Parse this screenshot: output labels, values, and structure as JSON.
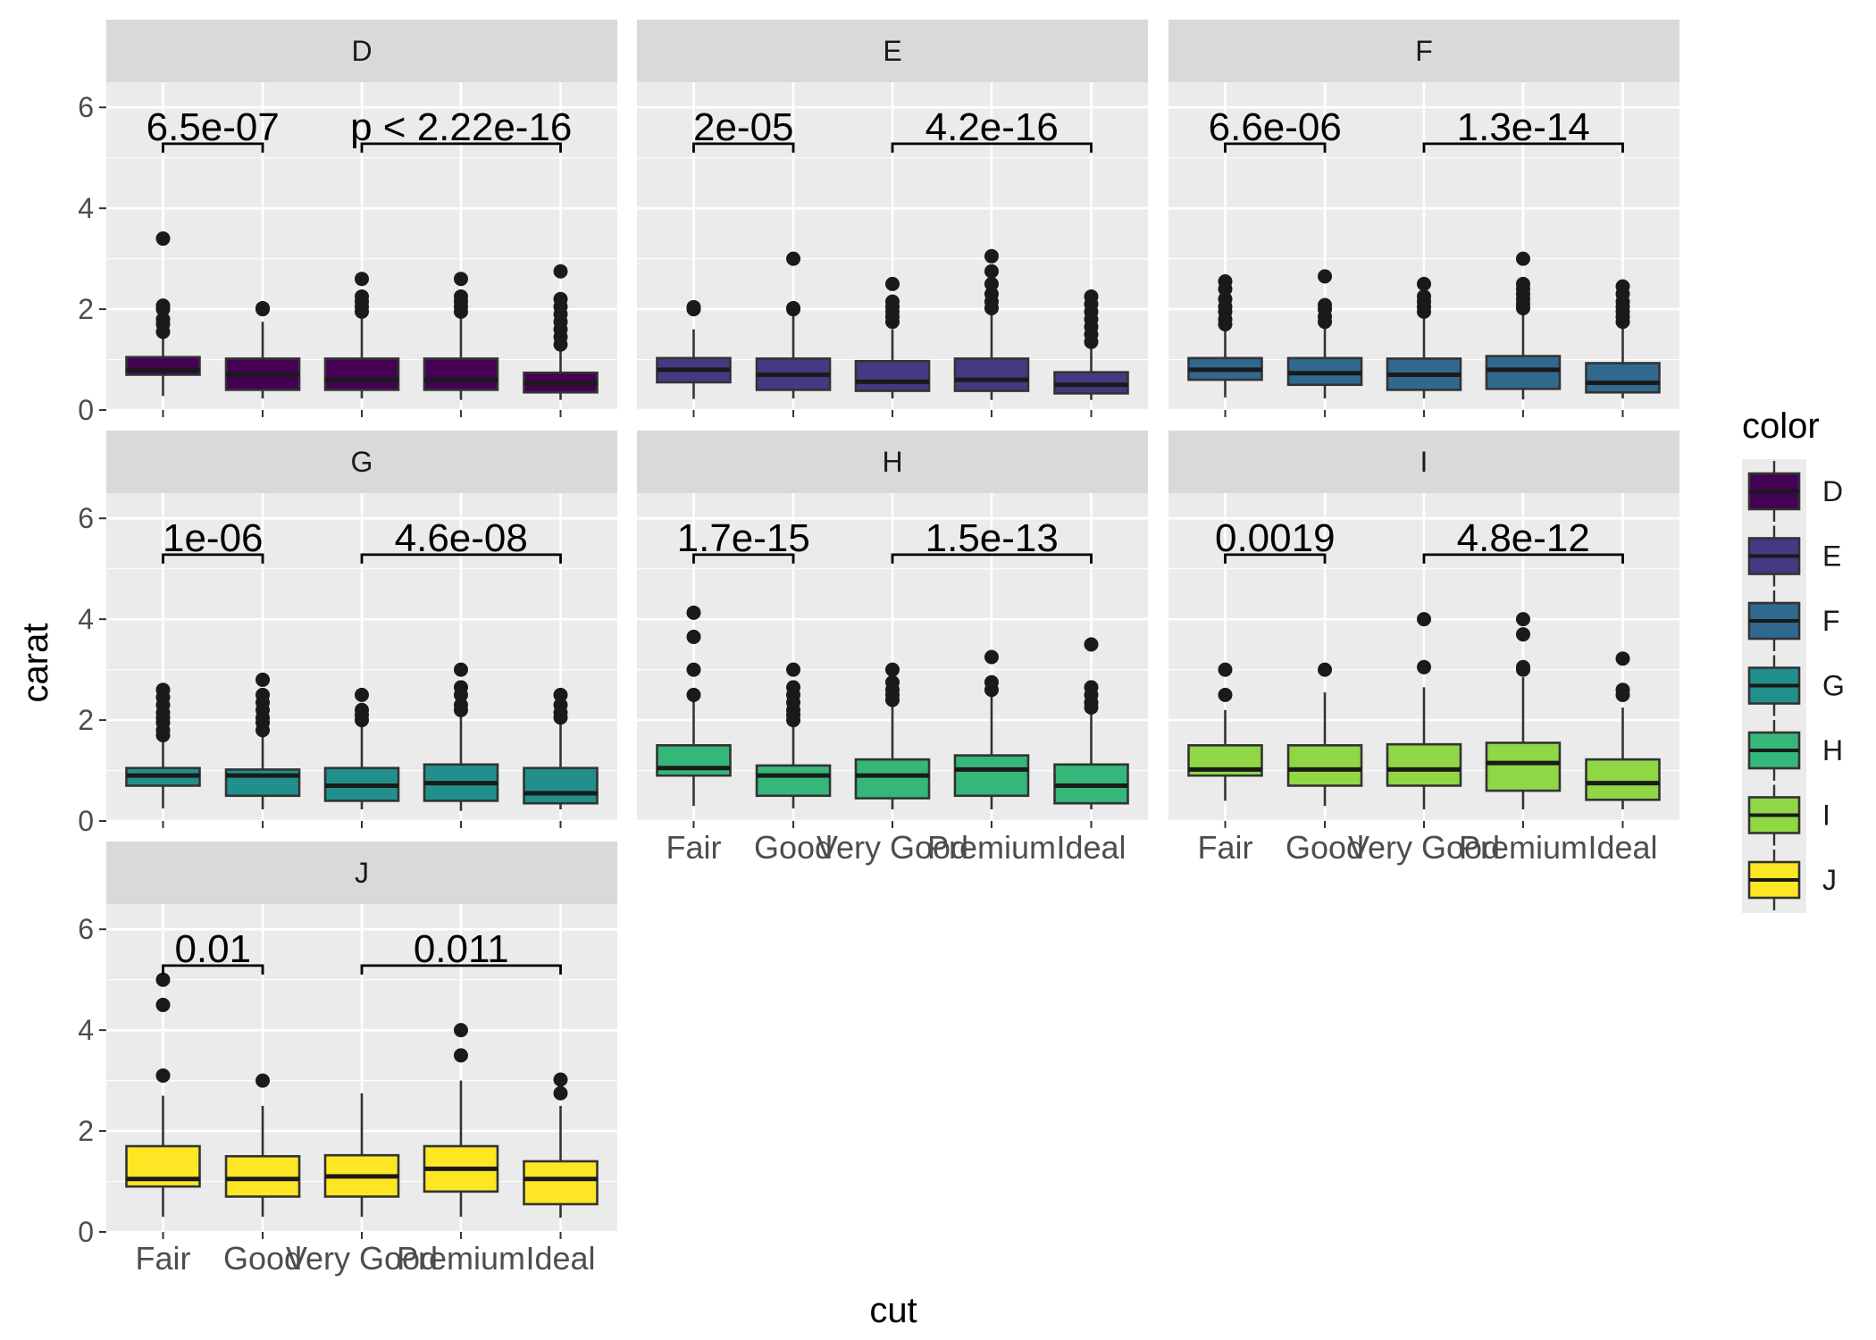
{
  "chart_data": {
    "type": "boxplot",
    "facet_variable": "color",
    "xlabel": "cut",
    "ylabel": "carat",
    "ylim": [
      0,
      6.5
    ],
    "y_ticks": [
      0,
      2,
      4,
      6
    ],
    "categories": [
      "Fair",
      "Good",
      "Very Good",
      "Premium",
      "Ideal"
    ],
    "grid": true,
    "legend": {
      "title": "color",
      "position": "right",
      "entries": [
        {
          "label": "D",
          "color": "#440154"
        },
        {
          "label": "E",
          "color": "#443A83"
        },
        {
          "label": "F",
          "color": "#31688E"
        },
        {
          "label": "G",
          "color": "#21908C"
        },
        {
          "label": "H",
          "color": "#35B779"
        },
        {
          "label": "I",
          "color": "#8FD744"
        },
        {
          "label": "J",
          "color": "#FDE725"
        }
      ]
    },
    "panels": [
      {
        "label": "D",
        "color": "#440154",
        "comparisons": [
          {
            "groups": [
              "Fair",
              "Good"
            ],
            "p": "6.5e-07"
          },
          {
            "groups": [
              "Very Good",
              "Ideal"
            ],
            "p": "p < 2.22e-16"
          }
        ],
        "boxes": [
          {
            "q1": 0.7,
            "median": 0.8,
            "q3": 1.05,
            "lo": 0.28,
            "hi": 1.5,
            "outliers": [
              1.55,
              1.7,
              1.8,
              2.0,
              2.07,
              3.4
            ]
          },
          {
            "q1": 0.4,
            "median": 0.7,
            "q3": 1.02,
            "lo": 0.23,
            "hi": 1.75,
            "outliers": [
              2.0,
              2.02
            ]
          },
          {
            "q1": 0.4,
            "median": 0.6,
            "q3": 1.02,
            "lo": 0.23,
            "hi": 1.9,
            "outliers": [
              1.95,
              2.05,
              2.15,
              2.25,
              2.6
            ]
          },
          {
            "q1": 0.4,
            "median": 0.6,
            "q3": 1.02,
            "lo": 0.2,
            "hi": 1.9,
            "outliers": [
              1.95,
              2.05,
              2.15,
              2.25,
              2.6
            ]
          },
          {
            "q1": 0.35,
            "median": 0.53,
            "q3": 0.74,
            "lo": 0.2,
            "hi": 1.25,
            "outliers": [
              1.3,
              1.45,
              1.6,
              1.75,
              1.9,
              2.05,
              2.2,
              2.75
            ]
          }
        ]
      },
      {
        "label": "E",
        "color": "#443A83",
        "comparisons": [
          {
            "groups": [
              "Fair",
              "Good"
            ],
            "p": "2e-05"
          },
          {
            "groups": [
              "Very Good",
              "Ideal"
            ],
            "p": "4.2e-16"
          }
        ],
        "boxes": [
          {
            "q1": 0.55,
            "median": 0.8,
            "q3": 1.03,
            "lo": 0.22,
            "hi": 1.6,
            "outliers": [
              2.0,
              2.04
            ]
          },
          {
            "q1": 0.4,
            "median": 0.7,
            "q3": 1.02,
            "lo": 0.23,
            "hi": 1.95,
            "outliers": [
              2.0,
              2.02,
              3.0
            ]
          },
          {
            "q1": 0.38,
            "median": 0.56,
            "q3": 0.97,
            "lo": 0.23,
            "hi": 1.6,
            "outliers": [
              1.75,
              1.85,
              1.95,
              2.05,
              2.15,
              2.5
            ]
          },
          {
            "q1": 0.38,
            "median": 0.6,
            "q3": 1.02,
            "lo": 0.2,
            "hi": 1.95,
            "outliers": [
              2.02,
              2.15,
              2.3,
              2.5,
              2.75,
              3.05
            ]
          },
          {
            "q1": 0.33,
            "median": 0.5,
            "q3": 0.75,
            "lo": 0.2,
            "hi": 1.3,
            "outliers": [
              1.35,
              1.5,
              1.65,
              1.8,
              1.95,
              2.1,
              2.25
            ]
          }
        ]
      },
      {
        "label": "F",
        "color": "#31688E",
        "comparisons": [
          {
            "groups": [
              "Fair",
              "Good"
            ],
            "p": "6.6e-06"
          },
          {
            "groups": [
              "Very Good",
              "Ideal"
            ],
            "p": "1.3e-14"
          }
        ],
        "boxes": [
          {
            "q1": 0.6,
            "median": 0.8,
            "q3": 1.03,
            "lo": 0.25,
            "hi": 1.6,
            "outliers": [
              1.7,
              1.8,
              1.95,
              2.05,
              2.2,
              2.4,
              2.55
            ]
          },
          {
            "q1": 0.5,
            "median": 0.73,
            "q3": 1.03,
            "lo": 0.23,
            "hi": 1.65,
            "outliers": [
              1.75,
              1.85,
              2.0,
              2.08,
              2.65
            ]
          },
          {
            "q1": 0.4,
            "median": 0.7,
            "q3": 1.02,
            "lo": 0.23,
            "hi": 1.9,
            "outliers": [
              1.95,
              2.05,
              2.15,
              2.25,
              2.5
            ]
          },
          {
            "q1": 0.42,
            "median": 0.8,
            "q3": 1.07,
            "lo": 0.21,
            "hi": 1.95,
            "outliers": [
              2.02,
              2.1,
              2.2,
              2.3,
              2.4,
              2.5,
              3.0
            ]
          },
          {
            "q1": 0.35,
            "median": 0.54,
            "q3": 0.93,
            "lo": 0.23,
            "hi": 1.7,
            "outliers": [
              1.75,
              1.85,
              1.95,
              2.05,
              2.15,
              2.3,
              2.45
            ]
          }
        ]
      },
      {
        "label": "G",
        "color": "#21908C",
        "comparisons": [
          {
            "groups": [
              "Fair",
              "Good"
            ],
            "p": "1e-06"
          },
          {
            "groups": [
              "Very Good",
              "Ideal"
            ],
            "p": "4.6e-08"
          }
        ],
        "boxes": [
          {
            "q1": 0.7,
            "median": 0.9,
            "q3": 1.05,
            "lo": 0.25,
            "hi": 1.6,
            "outliers": [
              1.7,
              1.8,
              1.95,
              2.05,
              2.15,
              2.3,
              2.45,
              2.6
            ]
          },
          {
            "q1": 0.5,
            "median": 0.9,
            "q3": 1.02,
            "lo": 0.23,
            "hi": 1.75,
            "outliers": [
              1.8,
              1.95,
              2.05,
              2.2,
              2.35,
              2.5,
              2.8
            ]
          },
          {
            "q1": 0.4,
            "median": 0.7,
            "q3": 1.05,
            "lo": 0.23,
            "hi": 1.95,
            "outliers": [
              2.0,
              2.1,
              2.2,
              2.5
            ]
          },
          {
            "q1": 0.4,
            "median": 0.75,
            "q3": 1.12,
            "lo": 0.2,
            "hi": 2.1,
            "outliers": [
              2.2,
              2.3,
              2.5,
              2.65,
              3.0
            ]
          },
          {
            "q1": 0.35,
            "median": 0.55,
            "q3": 1.05,
            "lo": 0.23,
            "hi": 2.0,
            "outliers": [
              2.05,
              2.15,
              2.3,
              2.5
            ]
          }
        ]
      },
      {
        "label": "H",
        "color": "#35B779",
        "comparisons": [
          {
            "groups": [
              "Fair",
              "Good"
            ],
            "p": "1.7e-15"
          },
          {
            "groups": [
              "Very Good",
              "Ideal"
            ],
            "p": "1.5e-13"
          }
        ],
        "boxes": [
          {
            "q1": 0.9,
            "median": 1.05,
            "q3": 1.5,
            "lo": 0.3,
            "hi": 2.4,
            "outliers": [
              2.5,
              3.0,
              3.65,
              4.13
            ]
          },
          {
            "q1": 0.5,
            "median": 0.9,
            "q3": 1.1,
            "lo": 0.25,
            "hi": 1.95,
            "outliers": [
              2.0,
              2.1,
              2.2,
              2.35,
              2.5,
              2.65,
              3.0
            ]
          },
          {
            "q1": 0.45,
            "median": 0.9,
            "q3": 1.22,
            "lo": 0.23,
            "hi": 2.3,
            "outliers": [
              2.4,
              2.5,
              2.6,
              2.75,
              3.0
            ]
          },
          {
            "q1": 0.5,
            "median": 1.02,
            "q3": 1.3,
            "lo": 0.23,
            "hi": 2.5,
            "outliers": [
              2.6,
              2.75,
              3.25
            ]
          },
          {
            "q1": 0.35,
            "median": 0.7,
            "q3": 1.12,
            "lo": 0.23,
            "hi": 2.2,
            "outliers": [
              2.25,
              2.35,
              2.5,
              2.65,
              3.5
            ]
          }
        ]
      },
      {
        "label": "I",
        "color": "#8FD744",
        "comparisons": [
          {
            "groups": [
              "Fair",
              "Good"
            ],
            "p": "0.0019"
          },
          {
            "groups": [
              "Very Good",
              "Ideal"
            ],
            "p": "4.8e-12"
          }
        ],
        "boxes": [
          {
            "q1": 0.9,
            "median": 1.02,
            "q3": 1.5,
            "lo": 0.4,
            "hi": 2.2,
            "outliers": [
              2.5,
              3.0
            ]
          },
          {
            "q1": 0.7,
            "median": 1.02,
            "q3": 1.5,
            "lo": 0.3,
            "hi": 2.55,
            "outliers": [
              3.0
            ]
          },
          {
            "q1": 0.7,
            "median": 1.02,
            "q3": 1.52,
            "lo": 0.23,
            "hi": 2.65,
            "outliers": [
              3.05,
              4.0
            ]
          },
          {
            "q1": 0.6,
            "median": 1.15,
            "q3": 1.55,
            "lo": 0.23,
            "hi": 2.85,
            "outliers": [
              3.0,
              3.05,
              3.7,
              4.0
            ]
          },
          {
            "q1": 0.42,
            "median": 0.75,
            "q3": 1.22,
            "lo": 0.23,
            "hi": 2.25,
            "outliers": [
              2.5,
              2.6,
              3.22
            ]
          }
        ]
      },
      {
        "label": "J",
        "color": "#FDE725",
        "comparisons": [
          {
            "groups": [
              "Fair",
              "Good"
            ],
            "p": "0.01"
          },
          {
            "groups": [
              "Very Good",
              "Ideal"
            ],
            "p": "0.011"
          }
        ],
        "boxes": [
          {
            "q1": 0.9,
            "median": 1.05,
            "q3": 1.7,
            "lo": 0.3,
            "hi": 2.7,
            "outliers": [
              3.1,
              4.5,
              5.0
            ]
          },
          {
            "q1": 0.7,
            "median": 1.05,
            "q3": 1.5,
            "lo": 0.3,
            "hi": 2.5,
            "outliers": [
              3.0
            ]
          },
          {
            "q1": 0.7,
            "median": 1.1,
            "q3": 1.52,
            "lo": 0.3,
            "hi": 2.75,
            "outliers": []
          },
          {
            "q1": 0.8,
            "median": 1.25,
            "q3": 1.7,
            "lo": 0.3,
            "hi": 3.0,
            "outliers": [
              3.5,
              4.0
            ]
          },
          {
            "q1": 0.55,
            "median": 1.05,
            "q3": 1.4,
            "lo": 0.28,
            "hi": 2.5,
            "outliers": [
              2.75,
              3.02
            ]
          }
        ]
      }
    ]
  }
}
